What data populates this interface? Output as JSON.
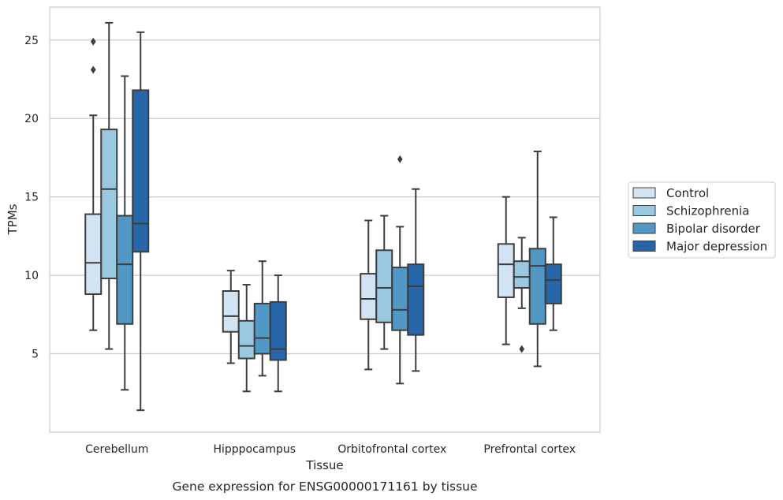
{
  "chart_data": {
    "type": "box",
    "xlabel": "Tissue",
    "ylabel": "TPMs",
    "caption": "Gene expression for ENSG00000171161 by tissue",
    "ylim": [
      0.0,
      27.1
    ],
    "yticks": [
      5,
      10,
      15,
      20,
      25
    ],
    "grid": "horizontal",
    "legend_position": "right",
    "categories": [
      "Cerebellum",
      "Hipppocampus",
      "Orbitofrontal cortex",
      "Prefrontal cortex"
    ],
    "series": [
      {
        "name": "Control",
        "color": "#d2e3f3",
        "boxes": [
          {
            "whislo": 6.5,
            "q1": 8.8,
            "med": 10.8,
            "q3": 13.9,
            "whishi": 20.2,
            "fliers": [
              23.1,
              24.9
            ]
          },
          {
            "whislo": 4.4,
            "q1": 6.4,
            "med": 7.4,
            "q3": 9.0,
            "whishi": 10.3,
            "fliers": []
          },
          {
            "whislo": 4.0,
            "q1": 7.2,
            "med": 8.5,
            "q3": 10.1,
            "whishi": 13.5,
            "fliers": []
          },
          {
            "whislo": 5.6,
            "q1": 8.6,
            "med": 10.7,
            "q3": 12.0,
            "whishi": 15.0,
            "fliers": []
          }
        ]
      },
      {
        "name": "Schizophrenia",
        "color": "#9ac8e0",
        "boxes": [
          {
            "whislo": 5.3,
            "q1": 9.8,
            "med": 15.5,
            "q3": 19.3,
            "whishi": 26.1,
            "fliers": []
          },
          {
            "whislo": 2.6,
            "q1": 4.7,
            "med": 5.5,
            "q3": 7.1,
            "whishi": 9.4,
            "fliers": []
          },
          {
            "whislo": 5.3,
            "q1": 7.0,
            "med": 9.2,
            "q3": 11.6,
            "whishi": 13.8,
            "fliers": []
          },
          {
            "whislo": 7.9,
            "q1": 9.2,
            "med": 9.9,
            "q3": 10.9,
            "whishi": 12.4,
            "fliers": [
              5.3
            ]
          }
        ]
      },
      {
        "name": "Bipolar disorder",
        "color": "#5198c5",
        "boxes": [
          {
            "whislo": 2.7,
            "q1": 6.9,
            "med": 10.7,
            "q3": 13.8,
            "whishi": 22.7,
            "fliers": []
          },
          {
            "whislo": 3.6,
            "q1": 5.0,
            "med": 6.0,
            "q3": 8.2,
            "whishi": 10.9,
            "fliers": []
          },
          {
            "whislo": 3.1,
            "q1": 6.5,
            "med": 7.8,
            "q3": 10.5,
            "whishi": 13.1,
            "fliers": [
              17.4
            ]
          },
          {
            "whislo": 4.2,
            "q1": 6.9,
            "med": 10.6,
            "q3": 11.7,
            "whishi": 17.9,
            "fliers": []
          }
        ]
      },
      {
        "name": "Major depression",
        "color": "#2766a8",
        "boxes": [
          {
            "whislo": 1.4,
            "q1": 11.5,
            "med": 13.3,
            "q3": 21.8,
            "whishi": 25.5,
            "fliers": []
          },
          {
            "whislo": 2.6,
            "q1": 4.6,
            "med": 5.3,
            "q3": 8.3,
            "whishi": 10.0,
            "fliers": []
          },
          {
            "whislo": 3.9,
            "q1": 6.2,
            "med": 9.3,
            "q3": 10.7,
            "whishi": 15.5,
            "fliers": []
          },
          {
            "whislo": 6.5,
            "q1": 8.2,
            "med": 9.7,
            "q3": 10.7,
            "whishi": 13.7,
            "fliers": []
          }
        ]
      }
    ]
  }
}
